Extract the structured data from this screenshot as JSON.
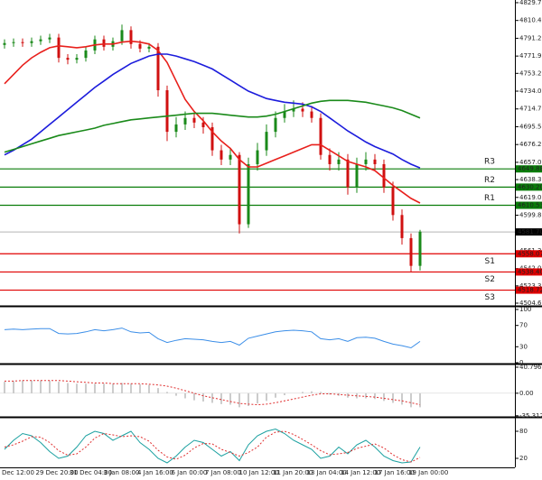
{
  "chart_data": [
    {
      "type": "candlestick",
      "ylim": [
        4502.7,
        4832.6
      ],
      "yticks": [
        {
          "value": 4829.7,
          "label": "4829.70"
        },
        4810.45,
        {
          "value": 4791.2,
          "label": "4791.20"
        },
        4771.95,
        4753.25,
        {
          "value": 4734,
          "label": "4734.00"
        },
        4714.75,
        {
          "value": 4695.5,
          "label": "4695.50"
        },
        4676.25,
        {
          "value": 4657,
          "label": "4657.00"
        },
        {
          "value": 4638.3,
          "label": "4638.30"
        },
        4619.05,
        {
          "value": 4599.8,
          "label": "4599.80"
        },
        4580.55,
        {
          "value": 4561.3,
          "label": "4561.30"
        },
        4542.05,
        4523.35,
        4504.65
      ],
      "up_color": "#1a8a1a",
      "down_color": "#d01010",
      "ohlc": {
        "open": [
          4784,
          4786,
          4787,
          4786,
          4788,
          4790,
          4792,
          4770,
          4768,
          4770,
          4778,
          4790,
          4782,
          4788,
          4800,
          4785,
          4780,
          4782,
          4735,
          4690,
          4698,
          4705,
          4700,
          4695,
          4670,
          4660,
          4665,
          4590,
          4655,
          4670,
          4690,
          4705,
          4712,
          4715,
          4712,
          4705,
          4665,
          4655,
          4660,
          4630,
          4655,
          4660,
          4655,
          4630,
          4600,
          4575,
          4545
        ],
        "high": [
          4790,
          4791,
          4791,
          4792,
          4794,
          4796,
          4796,
          4774,
          4774,
          4782,
          4794,
          4794,
          4792,
          4806,
          4804,
          4789,
          4786,
          4786,
          4740,
          4706,
          4712,
          4710,
          4706,
          4700,
          4676,
          4672,
          4668,
          4662,
          4678,
          4698,
          4712,
          4720,
          4724,
          4722,
          4718,
          4710,
          4672,
          4668,
          4666,
          4662,
          4668,
          4666,
          4660,
          4636,
          4606,
          4580,
          4584
        ],
        "low": [
          4780,
          4782,
          4782,
          4782,
          4784,
          4786,
          4765,
          4763,
          4764,
          4766,
          4774,
          4778,
          4778,
          4784,
          4780,
          4776,
          4776,
          4728,
          4680,
          4684,
          4692,
          4694,
          4688,
          4664,
          4654,
          4654,
          4580,
          4586,
          4648,
          4664,
          4684,
          4700,
          4706,
          4706,
          4700,
          4660,
          4648,
          4648,
          4622,
          4624,
          4648,
          4648,
          4624,
          4594,
          4568,
          4538,
          4540
        ],
        "close": [
          4786,
          4787,
          4786,
          4788,
          4790,
          4792,
          4770,
          4768,
          4770,
          4778,
          4790,
          4782,
          4788,
          4800,
          4785,
          4780,
          4782,
          4735,
          4690,
          4698,
          4705,
          4700,
          4695,
          4670,
          4660,
          4665,
          4590,
          4655,
          4670,
          4690,
          4705,
          4712,
          4715,
          4712,
          4705,
          4665,
          4655,
          4660,
          4630,
          4655,
          4660,
          4655,
          4630,
          4600,
          4575,
          4545,
          4582
        ]
      },
      "series": [
        {
          "color": "#e8201c",
          "values": [
            4742,
            4752,
            4762,
            4770,
            4776,
            4781,
            4783,
            4782,
            4781,
            4782,
            4784,
            4785,
            4785,
            4787,
            4788,
            4787,
            4785,
            4778,
            4765,
            4745,
            4725,
            4712,
            4702,
            4690,
            4680,
            4672,
            4660,
            4652,
            4652,
            4656,
            4660,
            4664,
            4668,
            4672,
            4676,
            4676,
            4670,
            4664,
            4658,
            4655,
            4652,
            4648,
            4640,
            4632,
            4625,
            4618,
            4613
          ]
        },
        {
          "color": "#1c1cdc",
          "values": [
            4665,
            4670,
            4676,
            4682,
            4690,
            4698,
            4706,
            4714,
            4722,
            4730,
            4738,
            4745,
            4752,
            4758,
            4764,
            4768,
            4772,
            4774,
            4774,
            4772,
            4769,
            4766,
            4762,
            4758,
            4752,
            4746,
            4740,
            4734,
            4730,
            4726,
            4724,
            4722,
            4721,
            4720,
            4717,
            4712,
            4705,
            4698,
            4691,
            4685,
            4679,
            4674,
            4670,
            4666,
            4660,
            4655,
            4651
          ]
        },
        {
          "color": "#1a8a1a",
          "values": [
            4668,
            4671,
            4674,
            4677,
            4680,
            4683,
            4686,
            4688,
            4690,
            4692,
            4694,
            4697,
            4699,
            4701,
            4703,
            4704,
            4705,
            4706,
            4707,
            4708,
            4709,
            4710,
            4710,
            4710,
            4709,
            4708,
            4707,
            4706,
            4706,
            4707,
            4709,
            4712,
            4715,
            4718,
            4721,
            4723,
            4724,
            4724,
            4724,
            4723,
            4722,
            4720,
            4718,
            4716,
            4713,
            4709,
            4705
          ]
        }
      ],
      "levels": [
        {
          "name": "R3",
          "value": 4649.88,
          "value_label": "4649.88",
          "color": "#0a7d0a"
        },
        {
          "name": "R2",
          "value": 4630.2,
          "value_label": "4630.20",
          "color": "#0a7d0a"
        },
        {
          "name": "R1",
          "value": 4610.53,
          "value_label": "4610.53",
          "color": "#0a7d0a"
        },
        {
          "name": "S1",
          "value": 4558.07,
          "value_label": "4558.07",
          "color": "#e00000"
        },
        {
          "name": "S2",
          "value": 4538.4,
          "value_label": "4538.40",
          "color": "#e00000"
        },
        {
          "name": "S3",
          "value": 4518.72,
          "value_label": "4518.72",
          "color": "#e00000"
        }
      ],
      "last_price": {
        "value": 4581.7,
        "label": "4581.70"
      },
      "x_tick_labels": [
        "Dec 12:00",
        "29 Dec 20:00",
        "31 Dec 04:00",
        "3 Jan 08:00",
        "4 Jan 16:00",
        "6 Jan 00:00",
        "7 Jan 08:00",
        "10 Jan 12:00",
        "11 Jan 20:00",
        "13 Jan 04:00",
        "14 Jan 12:00",
        "17 Jan 16:00",
        "19 Jan 00:00"
      ]
    },
    {
      "type": "line",
      "ylim": [
        0,
        100
      ],
      "yticks": [
        100,
        70,
        30,
        0
      ],
      "series": [
        {
          "color": "#3b8ee8",
          "values": [
            62,
            63,
            62,
            63,
            64,
            64,
            55,
            54,
            55,
            58,
            62,
            60,
            62,
            65,
            58,
            56,
            57,
            45,
            38,
            42,
            45,
            44,
            43,
            40,
            38,
            40,
            33,
            46,
            50,
            54,
            58,
            60,
            61,
            60,
            58,
            45,
            43,
            45,
            40,
            47,
            48,
            46,
            40,
            35,
            32,
            28,
            40
          ]
        }
      ]
    },
    {
      "type": "macd",
      "ylim": [
        -37,
        45
      ],
      "yticks": [
        40.796,
        {
          "value": 0,
          "label": "0.00"
        },
        -35.312
      ],
      "histogram": {
        "color": "#999999",
        "values": [
          18,
          19,
          20,
          20,
          20,
          20,
          18,
          16,
          15,
          15,
          15,
          15,
          15,
          16,
          15,
          14,
          13,
          8,
          2,
          -4,
          -8,
          -11,
          -13,
          -15,
          -17,
          -18,
          -22,
          -20,
          -16,
          -12,
          -7,
          -3,
          0,
          2,
          3,
          2,
          -2,
          -4,
          -7,
          -8,
          -8,
          -9,
          -12,
          -15,
          -18,
          -22,
          -22
        ]
      },
      "series": [
        {
          "color": "#e03030",
          "values": [
            19,
            19,
            20,
            20,
            20,
            20,
            20,
            19,
            18,
            17,
            16,
            16,
            15,
            15,
            15,
            15,
            14,
            13,
            11,
            8,
            4,
            0,
            -4,
            -7,
            -10,
            -13,
            -16,
            -17,
            -18,
            -17,
            -15,
            -12,
            -9,
            -6,
            -3,
            -1,
            -1,
            -2,
            -3,
            -4,
            -5,
            -6,
            -8,
            -10,
            -12,
            -15,
            -18
          ]
        }
      ]
    },
    {
      "type": "line",
      "ylim": [
        0,
        100
      ],
      "yticks": [
        80,
        20
      ],
      "series": [
        {
          "color": "#1aa0a0",
          "values": [
            40,
            60,
            75,
            70,
            55,
            35,
            20,
            25,
            45,
            70,
            80,
            75,
            60,
            70,
            80,
            55,
            40,
            20,
            10,
            25,
            45,
            60,
            55,
            40,
            25,
            35,
            15,
            50,
            70,
            80,
            85,
            75,
            60,
            50,
            40,
            20,
            25,
            45,
            30,
            50,
            60,
            45,
            25,
            15,
            10,
            12,
            45
          ]
        },
        {
          "color": "#e03030",
          "dashed": true,
          "values": [
            45,
            50,
            58,
            68,
            67,
            55,
            37,
            27,
            30,
            45,
            65,
            75,
            72,
            68,
            70,
            68,
            58,
            38,
            23,
            18,
            27,
            43,
            53,
            52,
            40,
            33,
            25,
            33,
            45,
            67,
            78,
            80,
            73,
            62,
            50,
            37,
            28,
            30,
            33,
            42,
            47,
            52,
            43,
            28,
            17,
            12,
            22
          ]
        }
      ]
    }
  ]
}
